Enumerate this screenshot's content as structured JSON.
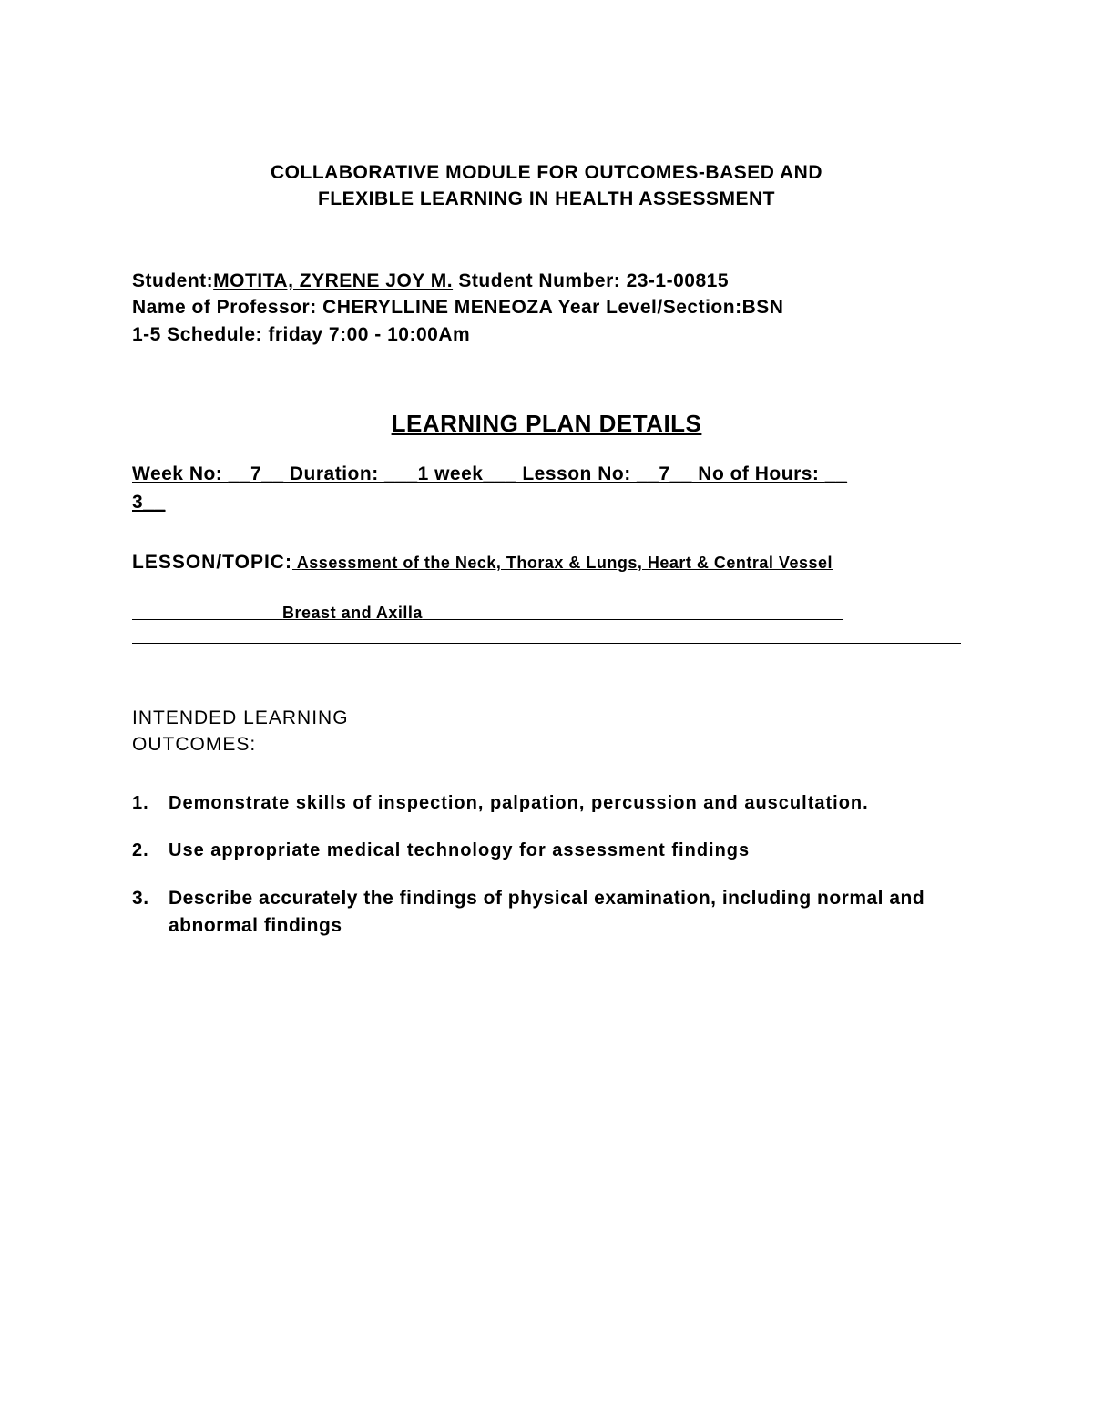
{
  "header": {
    "title_line1": "COLLABORATIVE MODULE FOR OUTCOMES-BASED AND",
    "title_line2": "FLEXIBLE LEARNING IN HEALTH ASSESSMENT"
  },
  "student_info": {
    "student_label": "Student:",
    "student_name": "MOTITA, ZYRENE JOY M.",
    "student_number_label": " Student Number: ",
    "student_number": "23-1-00815",
    "professor_label": "Name of Professor: ",
    "professor_name": "CHERYLLINE MENEOZA",
    "year_level_label": " Year Level/Section:",
    "year_level": "BSN",
    "schedule_label": "1-5 Schedule: ",
    "schedule": "friday 7:00 - 10:00Am"
  },
  "section_title": "LEARNING PLAN DETAILS",
  "plan_details": {
    "week_no_label": "Week No: ",
    "week_no": "__7__",
    "duration_label": " Duration: ",
    "duration": "___1 week___",
    "lesson_no_label": "  Lesson No: ",
    "lesson_no": "__7__",
    "hours_label": " No of Hours: ",
    "hours_prefix": "__",
    "hours_value": "3__"
  },
  "lesson_topic": {
    "label": "LESSON/TOPIC:",
    "value": " Assessment of the Neck, Thorax & Lungs, Heart & Central Vessel"
  },
  "breast_line": {
    "prefix": "                              ",
    "text": "Breast and Axilla",
    "suffix": "                                                                                    "
  },
  "outcomes": {
    "header_line1": "INTENDED LEARNING",
    "header_line2": "OUTCOMES:",
    "items": [
      "Demonstrate skills of inspection, palpation, percussion and auscultation.",
      " Use appropriate medical technology for assessment findings",
      "Describe accurately the findings of physical examination, including normal and abnormal findings"
    ]
  }
}
